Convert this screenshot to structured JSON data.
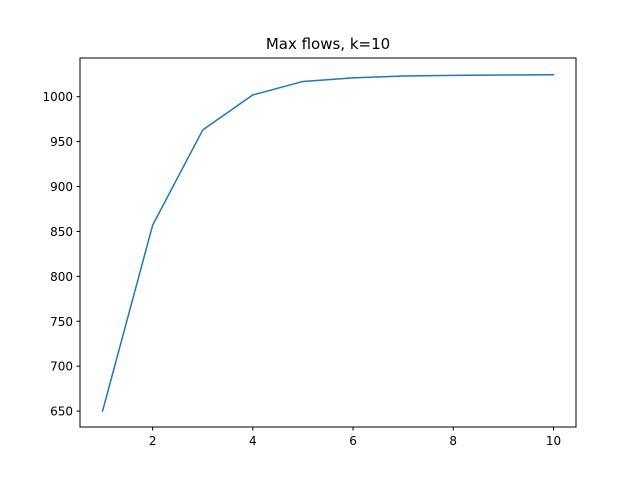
{
  "chart_data": {
    "type": "line",
    "title": "Max flows, k=10",
    "xlabel": "",
    "ylabel": "",
    "xlim": [
      0.55,
      10.45
    ],
    "ylim": [
      632.3,
      1043.1
    ],
    "xticks": [
      2,
      4,
      6,
      8,
      10
    ],
    "yticks": [
      650,
      700,
      750,
      800,
      850,
      900,
      950,
      1000
    ],
    "grid": false,
    "series": [
      {
        "color": "#1f77b4",
        "x": [
          1,
          2,
          3,
          4,
          5,
          6,
          7,
          8,
          9,
          10
        ],
        "y": [
          650,
          857,
          963,
          1002,
          1017,
          1021,
          1023,
          1023.8,
          1024.2,
          1024.5
        ]
      }
    ]
  }
}
